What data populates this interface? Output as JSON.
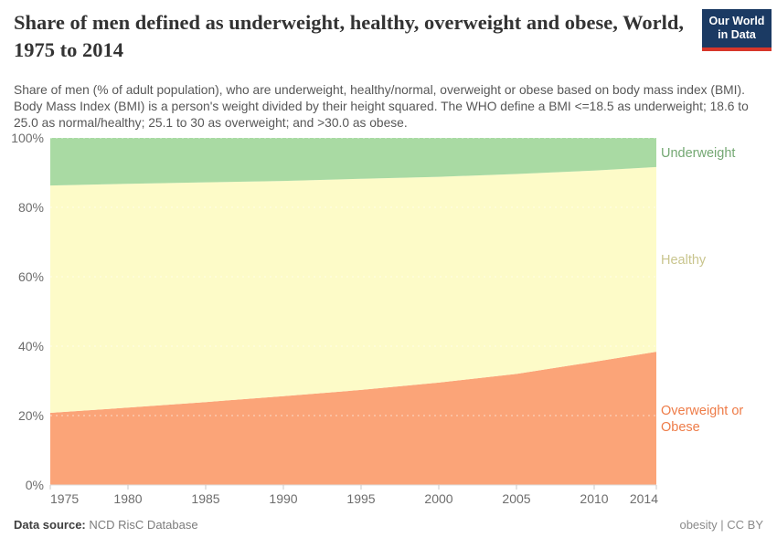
{
  "header": {
    "title": "Share of men defined as underweight, healthy, overweight and obese, World, 1975 to 2014",
    "subtitle": "Share of men (% of adult population), who are underweight, healthy/normal, overweight or obese based on body mass index (BMI). Body Mass Index (BMI) is a person's weight divided by their height squared. The WHO define a BMI <=18.5 as underweight; 18.6 to 25.0 as normal/healthy; 25.1 to 30 as overweight; and >30.0 as obese.",
    "logo": {
      "line1": "Our World",
      "line2": "in Data",
      "bg_color": "#1b3a63",
      "bar_color": "#d7362a"
    }
  },
  "chart_data": {
    "type": "area",
    "stacked": true,
    "title": "Share of men defined as underweight, healthy, overweight and obese, World, 1975 to 2014",
    "x": [
      1975,
      1980,
      1985,
      1990,
      1995,
      2000,
      2005,
      2010,
      2014
    ],
    "x_tick_labels": [
      "1975",
      "1980",
      "1985",
      "1990",
      "1995",
      "2000",
      "2005",
      "2010",
      "2014"
    ],
    "xlabel": "",
    "ylabel": "",
    "ylim": [
      0,
      100
    ],
    "y_ticks": [
      0,
      20,
      40,
      60,
      80,
      100
    ],
    "y_tick_labels": [
      "0%",
      "20%",
      "40%",
      "60%",
      "80%",
      "100%"
    ],
    "grid": "dashed",
    "legend_position": "right-of-plot",
    "series": [
      {
        "name": "Overweight or Obese",
        "label_lines": [
          "Overweight or",
          "Obese"
        ],
        "values": [
          20.8,
          22.3,
          23.9,
          25.6,
          27.4,
          29.5,
          32.0,
          35.5,
          38.4
        ],
        "color": "#fba478",
        "label_color": "#ee7c48"
      },
      {
        "name": "Healthy",
        "label_lines": [
          "Healthy"
        ],
        "values": [
          65.5,
          64.5,
          63.3,
          62.0,
          60.8,
          59.3,
          57.6,
          55.1,
          53.2
        ],
        "color": "#fdfbc8",
        "label_color": "#c9c58e"
      },
      {
        "name": "Underweight",
        "label_lines": [
          "Underweight"
        ],
        "values": [
          13.7,
          13.2,
          12.8,
          12.4,
          11.8,
          11.2,
          10.4,
          9.4,
          8.4
        ],
        "color": "#a9daa3",
        "label_color": "#74a873"
      }
    ]
  },
  "footer": {
    "source_label": "Data source:",
    "source_value": "NCD RisC Database",
    "license": "obesity | CC BY"
  }
}
